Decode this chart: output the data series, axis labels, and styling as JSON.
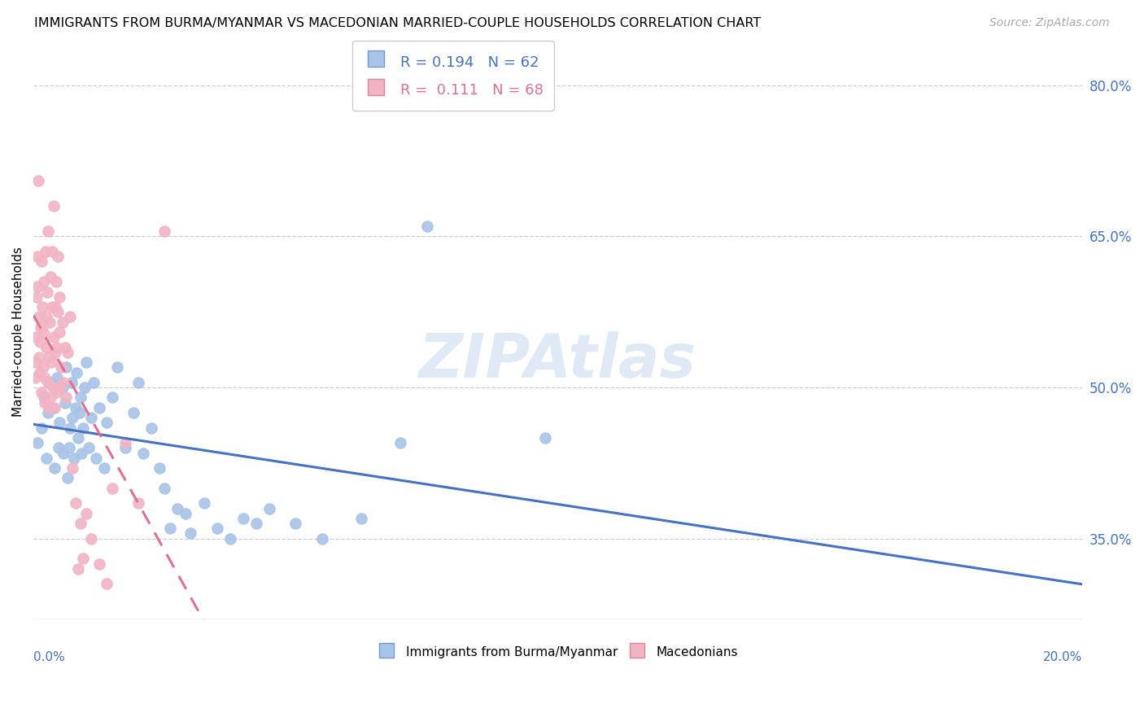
{
  "title": "IMMIGRANTS FROM BURMA/MYANMAR VS MACEDONIAN MARRIED-COUPLE HOUSEHOLDS CORRELATION CHART",
  "source": "Source: ZipAtlas.com",
  "ylabel": "Married-couple Households",
  "xmin": 0.0,
  "xmax": 20.0,
  "ymin": 27.0,
  "ymax": 84.0,
  "y_ticks": [
    35.0,
    50.0,
    65.0,
    80.0
  ],
  "blue_label": "Immigrants from Burma/Myanmar",
  "pink_label": "Macedonians",
  "blue_R": "R = 0.194",
  "blue_N": "N = 62",
  "pink_R": "R =  0.111",
  "pink_N": "N = 68",
  "blue_fill": "#a8c4e8",
  "pink_fill": "#f2b3c5",
  "blue_line": "#4472c4",
  "pink_line": "#e07090",
  "blue_scatter": [
    [
      0.08,
      44.5
    ],
    [
      0.15,
      46.0
    ],
    [
      0.2,
      49.0
    ],
    [
      0.25,
      43.0
    ],
    [
      0.28,
      47.5
    ],
    [
      0.32,
      50.5
    ],
    [
      0.35,
      48.0
    ],
    [
      0.4,
      42.0
    ],
    [
      0.45,
      51.0
    ],
    [
      0.48,
      44.0
    ],
    [
      0.5,
      46.5
    ],
    [
      0.55,
      50.0
    ],
    [
      0.58,
      43.5
    ],
    [
      0.6,
      48.5
    ],
    [
      0.62,
      52.0
    ],
    [
      0.65,
      41.0
    ],
    [
      0.68,
      44.0
    ],
    [
      0.7,
      46.0
    ],
    [
      0.72,
      50.5
    ],
    [
      0.75,
      47.0
    ],
    [
      0.78,
      43.0
    ],
    [
      0.8,
      48.0
    ],
    [
      0.82,
      51.5
    ],
    [
      0.85,
      45.0
    ],
    [
      0.88,
      47.5
    ],
    [
      0.9,
      49.0
    ],
    [
      0.92,
      43.5
    ],
    [
      0.95,
      46.0
    ],
    [
      0.98,
      50.0
    ],
    [
      1.0,
      52.5
    ],
    [
      1.05,
      44.0
    ],
    [
      1.1,
      47.0
    ],
    [
      1.15,
      50.5
    ],
    [
      1.2,
      43.0
    ],
    [
      1.25,
      48.0
    ],
    [
      1.35,
      42.0
    ],
    [
      1.4,
      46.5
    ],
    [
      1.5,
      49.0
    ],
    [
      1.6,
      52.0
    ],
    [
      1.75,
      44.0
    ],
    [
      1.9,
      47.5
    ],
    [
      2.0,
      50.5
    ],
    [
      2.1,
      43.5
    ],
    [
      2.25,
      46.0
    ],
    [
      2.4,
      42.0
    ],
    [
      2.5,
      40.0
    ],
    [
      2.6,
      36.0
    ],
    [
      2.75,
      38.0
    ],
    [
      2.9,
      37.5
    ],
    [
      3.0,
      35.5
    ],
    [
      3.25,
      38.5
    ],
    [
      3.5,
      36.0
    ],
    [
      3.75,
      35.0
    ],
    [
      4.0,
      37.0
    ],
    [
      4.25,
      36.5
    ],
    [
      4.5,
      38.0
    ],
    [
      5.0,
      36.5
    ],
    [
      5.5,
      35.0
    ],
    [
      6.25,
      37.0
    ],
    [
      7.0,
      44.5
    ],
    [
      7.5,
      66.0
    ],
    [
      9.75,
      45.0
    ]
  ],
  "pink_scatter": [
    [
      0.03,
      51.0
    ],
    [
      0.04,
      55.0
    ],
    [
      0.05,
      52.5
    ],
    [
      0.06,
      59.0
    ],
    [
      0.07,
      63.0
    ],
    [
      0.08,
      60.0
    ],
    [
      0.09,
      70.5
    ],
    [
      0.1,
      57.0
    ],
    [
      0.11,
      53.0
    ],
    [
      0.12,
      54.5
    ],
    [
      0.13,
      51.5
    ],
    [
      0.14,
      56.0
    ],
    [
      0.15,
      49.5
    ],
    [
      0.16,
      62.5
    ],
    [
      0.17,
      58.0
    ],
    [
      0.18,
      55.5
    ],
    [
      0.19,
      52.0
    ],
    [
      0.2,
      60.5
    ],
    [
      0.21,
      48.5
    ],
    [
      0.22,
      51.0
    ],
    [
      0.23,
      63.5
    ],
    [
      0.24,
      57.0
    ],
    [
      0.25,
      54.0
    ],
    [
      0.26,
      59.5
    ],
    [
      0.27,
      50.5
    ],
    [
      0.28,
      65.5
    ],
    [
      0.29,
      48.0
    ],
    [
      0.3,
      53.0
    ],
    [
      0.31,
      56.5
    ],
    [
      0.32,
      61.0
    ],
    [
      0.33,
      49.0
    ],
    [
      0.34,
      52.5
    ],
    [
      0.35,
      58.0
    ],
    [
      0.36,
      63.5
    ],
    [
      0.37,
      50.0
    ],
    [
      0.38,
      55.0
    ],
    [
      0.39,
      68.0
    ],
    [
      0.4,
      48.0
    ],
    [
      0.41,
      53.5
    ],
    [
      0.42,
      58.0
    ],
    [
      0.43,
      60.5
    ],
    [
      0.44,
      49.5
    ],
    [
      0.45,
      54.0
    ],
    [
      0.46,
      57.5
    ],
    [
      0.47,
      63.0
    ],
    [
      0.48,
      50.0
    ],
    [
      0.49,
      55.5
    ],
    [
      0.5,
      59.0
    ],
    [
      0.52,
      52.0
    ],
    [
      0.55,
      56.5
    ],
    [
      0.58,
      50.5
    ],
    [
      0.6,
      54.0
    ],
    [
      0.62,
      49.0
    ],
    [
      0.65,
      53.5
    ],
    [
      0.7,
      57.0
    ],
    [
      0.75,
      42.0
    ],
    [
      0.8,
      38.5
    ],
    [
      0.85,
      32.0
    ],
    [
      0.9,
      36.5
    ],
    [
      0.95,
      33.0
    ],
    [
      1.0,
      37.5
    ],
    [
      1.1,
      35.0
    ],
    [
      1.25,
      32.5
    ],
    [
      1.4,
      30.5
    ],
    [
      1.5,
      40.0
    ],
    [
      1.75,
      44.5
    ],
    [
      2.0,
      38.5
    ],
    [
      2.5,
      65.5
    ]
  ]
}
